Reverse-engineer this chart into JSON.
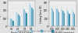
{
  "chart_a": {
    "xlabel": "Depth of cut (mm)",
    "ylabel": "Cutting Force (N)",
    "groups": [
      "0.1",
      "0.2",
      "0.3",
      "0.4"
    ],
    "series": [
      {
        "label": "Conventional",
        "color": "#b8d8e8",
        "values": [
          120,
          185,
          240,
          295
        ]
      },
      {
        "label": "UAL 0W",
        "color": "#88bdd4",
        "values": [
          105,
          165,
          215,
          265
        ]
      },
      {
        "label": "UAL 10W",
        "color": "#58a0bc",
        "values": [
          90,
          145,
          190,
          240
        ]
      },
      {
        "label": "UAL 20W",
        "color": "#2882a4",
        "values": [
          75,
          125,
          168,
          215
        ]
      }
    ],
    "ylim": [
      0,
      320
    ],
    "yticks": [
      0,
      100,
      200,
      300
    ]
  },
  "chart_b": {
    "xlabel": "Feed rate (mm/rev)",
    "ylabel": "Cutting Force (N)",
    "groups": [
      "0.05",
      "0.10",
      "0.15",
      "0.20",
      "0.25"
    ],
    "series": [
      {
        "label": "Conventional",
        "color": "#b8d8e8",
        "values": [
          265,
          255,
          245,
          235,
          225
        ]
      },
      {
        "label": "UAL 0W",
        "color": "#88bdd4",
        "values": [
          240,
          230,
          220,
          210,
          200
        ]
      },
      {
        "label": "UAL 10W",
        "color": "#58a0bc",
        "values": [
          215,
          205,
          196,
          187,
          178
        ]
      },
      {
        "label": "UAL 20W",
        "color": "#2882a4",
        "values": [
          190,
          181,
          172,
          163,
          155
        ]
      }
    ],
    "ylim": [
      0,
      320
    ],
    "yticks": [
      0,
      100,
      200,
      300
    ]
  },
  "legend_labels": [
    "Conventional",
    "UAL 0W",
    "UAL 10W",
    "UAL 20W"
  ],
  "legend_colors": [
    "#b8d8e8",
    "#88bdd4",
    "#58a0bc",
    "#2882a4"
  ],
  "bg_color": "#e0e0e0",
  "plot_bg": "#ebebeb"
}
